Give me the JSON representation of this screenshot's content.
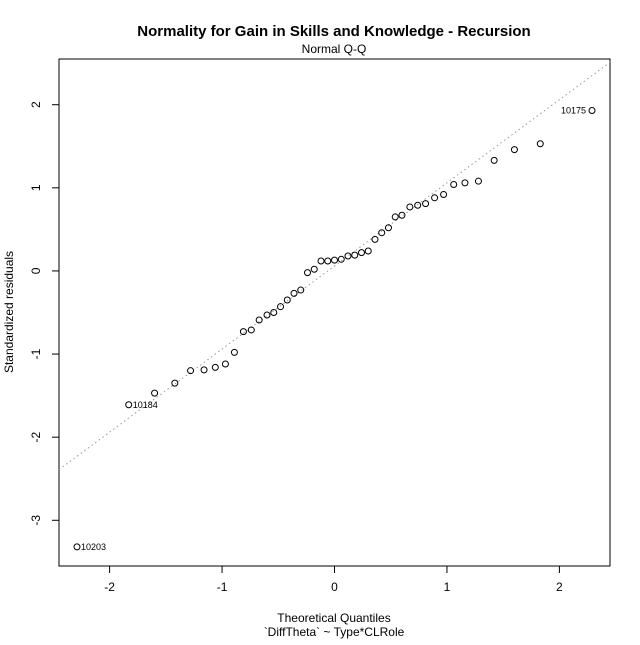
{
  "chart_data": {
    "type": "scatter",
    "title": "Normality for Gain in Skills and Knowledge - Recursion",
    "subtitle": "Normal Q-Q",
    "xlabel": "Theoretical Quantiles",
    "xlabel2": "`DiffTheta` ~ Type*CLRole",
    "ylabel": "Standardized residuals",
    "xlim": [
      -2.45,
      2.45
    ],
    "ylim": [
      -3.55,
      2.55
    ],
    "xticks": [
      -2,
      -1,
      0,
      1,
      2
    ],
    "yticks": [
      -3,
      -2,
      -1,
      0,
      1,
      2
    ],
    "xtick_labels": [
      "-2",
      "-1",
      "0",
      "1",
      "2"
    ],
    "ytick_labels": [
      "-3",
      "-2",
      "-1",
      "0",
      "1",
      "2"
    ],
    "grid": false,
    "reference_line": {
      "slope": 1.0,
      "intercept": 0.06,
      "style": "dotted",
      "color": "#999999"
    },
    "point_color": "#000000",
    "points": [
      {
        "x": -2.29,
        "y": -3.32,
        "label": "10203"
      },
      {
        "x": -1.83,
        "y": -1.61,
        "label": "10184"
      },
      {
        "x": -1.6,
        "y": -1.47
      },
      {
        "x": -1.42,
        "y": -1.35
      },
      {
        "x": -1.28,
        "y": -1.2
      },
      {
        "x": -1.16,
        "y": -1.19
      },
      {
        "x": -1.06,
        "y": -1.16
      },
      {
        "x": -0.97,
        "y": -1.12
      },
      {
        "x": -0.89,
        "y": -0.98
      },
      {
        "x": -0.81,
        "y": -0.73
      },
      {
        "x": -0.74,
        "y": -0.71
      },
      {
        "x": -0.67,
        "y": -0.59
      },
      {
        "x": -0.6,
        "y": -0.53
      },
      {
        "x": -0.54,
        "y": -0.5
      },
      {
        "x": -0.48,
        "y": -0.43
      },
      {
        "x": -0.42,
        "y": -0.35
      },
      {
        "x": -0.36,
        "y": -0.27
      },
      {
        "x": -0.3,
        "y": -0.23
      },
      {
        "x": -0.24,
        "y": -0.02
      },
      {
        "x": -0.18,
        "y": 0.02
      },
      {
        "x": -0.12,
        "y": 0.12
      },
      {
        "x": -0.06,
        "y": 0.12
      },
      {
        "x": 0.0,
        "y": 0.13
      },
      {
        "x": 0.06,
        "y": 0.14
      },
      {
        "x": 0.12,
        "y": 0.18
      },
      {
        "x": 0.18,
        "y": 0.19
      },
      {
        "x": 0.24,
        "y": 0.22
      },
      {
        "x": 0.3,
        "y": 0.24
      },
      {
        "x": 0.36,
        "y": 0.38
      },
      {
        "x": 0.42,
        "y": 0.46
      },
      {
        "x": 0.48,
        "y": 0.52
      },
      {
        "x": 0.54,
        "y": 0.65
      },
      {
        "x": 0.6,
        "y": 0.67
      },
      {
        "x": 0.67,
        "y": 0.77
      },
      {
        "x": 0.74,
        "y": 0.79
      },
      {
        "x": 0.81,
        "y": 0.81
      },
      {
        "x": 0.89,
        "y": 0.88
      },
      {
        "x": 0.97,
        "y": 0.92
      },
      {
        "x": 1.06,
        "y": 1.04
      },
      {
        "x": 1.16,
        "y": 1.06
      },
      {
        "x": 1.28,
        "y": 1.08
      },
      {
        "x": 1.42,
        "y": 1.33
      },
      {
        "x": 1.6,
        "y": 1.46
      },
      {
        "x": 1.83,
        "y": 1.53
      },
      {
        "x": 2.29,
        "y": 1.93,
        "label": "10175"
      }
    ]
  }
}
